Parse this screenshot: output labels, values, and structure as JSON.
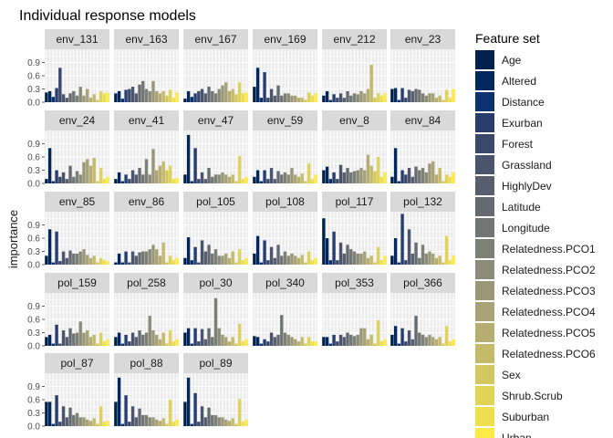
{
  "chart_data": {
    "type": "bar",
    "title": "Individual response models",
    "ylabel": "importance",
    "xlabel": "",
    "ylim": [
      0,
      1.2
    ],
    "y_ticks": [
      0.0,
      0.3,
      0.6,
      0.9
    ],
    "y_tick_labels": [
      "0.0",
      "0.3",
      "0.6",
      "0.9"
    ],
    "grid": true,
    "legend": {
      "title": "Feature set",
      "placement": "right",
      "items": [
        {
          "label": "Age",
          "color": "#00204d"
        },
        {
          "label": "Altered",
          "color": "#00275e"
        },
        {
          "label": "Distance",
          "color": "#0a326f"
        },
        {
          "label": "Exurban",
          "color": "#263d6d"
        },
        {
          "label": "Forest",
          "color": "#3a486b"
        },
        {
          "label": "Grassland",
          "color": "#4a546c"
        },
        {
          "label": "HighlyDev",
          "color": "#575f6e"
        },
        {
          "label": "Latitude",
          "color": "#646a70"
        },
        {
          "label": "Longitude",
          "color": "#717573"
        },
        {
          "label": "Relatedness.PCO1",
          "color": "#7d8075"
        },
        {
          "label": "Relatedness.PCO2",
          "color": "#8a8b78"
        },
        {
          "label": "Relatedness.PCO3",
          "color": "#999778"
        },
        {
          "label": "Relatedness.PCO4",
          "color": "#a8a276"
        },
        {
          "label": "Relatedness.PCO5",
          "color": "#b6ae71"
        },
        {
          "label": "Relatedness.PCO6",
          "color": "#c5ba6a"
        },
        {
          "label": "Sex",
          "color": "#d3c762"
        },
        {
          "label": "Shrub.Scrub",
          "color": "#e1d358"
        },
        {
          "label": "Suburban",
          "color": "#f0df4c"
        },
        {
          "label": "Urban",
          "color": "#fdea45"
        }
      ]
    },
    "panels": [
      {
        "name": "env_131",
        "values": [
          0.22,
          0.25,
          0.12,
          0.32,
          0.78,
          0.18,
          0.1,
          0.2,
          0.25,
          0.15,
          0.35,
          0.15,
          0.3,
          0.1,
          0.18,
          0.05,
          0.25,
          0.2,
          0.22
        ]
      },
      {
        "name": "env_163",
        "values": [
          0.2,
          0.25,
          0.08,
          0.28,
          0.3,
          0.35,
          0.2,
          0.4,
          0.48,
          0.3,
          0.25,
          0.48,
          0.25,
          0.2,
          0.25,
          0.15,
          0.28,
          0.1,
          0.22
        ]
      },
      {
        "name": "env_167",
        "values": [
          0.08,
          0.25,
          0.12,
          0.2,
          0.25,
          0.3,
          0.2,
          0.35,
          0.25,
          0.2,
          0.3,
          0.38,
          0.45,
          0.25,
          0.3,
          0.18,
          0.45,
          0.2,
          0.22
        ]
      },
      {
        "name": "env_169",
        "values": [
          0.35,
          0.78,
          0.1,
          0.68,
          0.1,
          0.3,
          0.15,
          0.38,
          0.15,
          0.2,
          0.2,
          0.15,
          0.15,
          0.1,
          0.1,
          0.05,
          0.22,
          0.15,
          0.2
        ]
      },
      {
        "name": "env_212",
        "values": [
          0.15,
          0.25,
          0.05,
          0.18,
          0.1,
          0.2,
          0.1,
          0.25,
          0.15,
          0.2,
          0.18,
          0.25,
          0.2,
          0.3,
          0.85,
          0.1,
          0.2,
          0.15,
          0.2
        ]
      },
      {
        "name": "env_23",
        "values": [
          0.3,
          0.32,
          0.05,
          0.32,
          0.1,
          0.28,
          0.25,
          0.3,
          0.28,
          0.2,
          0.15,
          0.2,
          0.2,
          0.1,
          0.15,
          0.05,
          0.28,
          0.1,
          0.3
        ]
      },
      {
        "name": "env_24",
        "values": [
          0.1,
          0.8,
          0.05,
          0.3,
          0.15,
          0.25,
          0.1,
          0.4,
          0.15,
          0.28,
          0.2,
          0.48,
          0.55,
          0.4,
          0.58,
          0.05,
          0.35,
          0.1,
          0.15
        ]
      },
      {
        "name": "env_41",
        "values": [
          0.1,
          0.25,
          0.05,
          0.2,
          0.1,
          0.3,
          0.2,
          0.35,
          0.2,
          0.55,
          0.2,
          0.78,
          0.3,
          0.4,
          0.5,
          0.3,
          0.4,
          0.1,
          0.12
        ]
      },
      {
        "name": "env_47",
        "values": [
          0.2,
          1.1,
          0.05,
          0.8,
          0.1,
          0.25,
          0.1,
          0.35,
          0.15,
          0.2,
          0.2,
          0.25,
          0.2,
          0.15,
          0.2,
          0.05,
          0.62,
          0.1,
          0.15
        ]
      },
      {
        "name": "env_59",
        "values": [
          0.15,
          0.3,
          0.05,
          0.3,
          0.1,
          0.35,
          0.1,
          0.28,
          0.2,
          0.25,
          0.2,
          0.35,
          0.2,
          0.15,
          0.22,
          0.05,
          0.45,
          0.1,
          0.2
        ]
      },
      {
        "name": "env_8",
        "values": [
          0.3,
          0.38,
          0.1,
          0.25,
          0.1,
          0.42,
          0.25,
          0.35,
          0.25,
          0.28,
          0.3,
          0.35,
          0.3,
          0.65,
          0.4,
          0.28,
          0.6,
          0.15,
          0.25
        ]
      },
      {
        "name": "env_84",
        "values": [
          0.15,
          0.8,
          0.05,
          0.3,
          0.2,
          0.35,
          0.15,
          0.38,
          0.3,
          0.35,
          0.25,
          0.45,
          0.5,
          0.2,
          0.35,
          0.05,
          0.2,
          0.15,
          0.25
        ]
      },
      {
        "name": "env_85",
        "values": [
          0.2,
          0.8,
          0.05,
          0.75,
          0.08,
          0.3,
          0.15,
          0.32,
          0.25,
          0.25,
          0.3,
          0.35,
          0.22,
          0.15,
          0.2,
          0.05,
          0.15,
          0.1,
          0.08
        ]
      },
      {
        "name": "env_86",
        "values": [
          0.05,
          0.25,
          0.05,
          0.3,
          0.05,
          0.3,
          0.2,
          0.28,
          0.3,
          0.3,
          0.35,
          0.45,
          0.35,
          0.2,
          0.5,
          0.05,
          0.2,
          0.1,
          0.15
        ]
      },
      {
        "name": "pol_105",
        "values": [
          0.15,
          0.62,
          0.1,
          0.4,
          0.05,
          0.55,
          0.3,
          0.45,
          0.25,
          0.35,
          0.2,
          0.2,
          0.25,
          0.15,
          0.3,
          0.05,
          0.35,
          0.1,
          0.15
        ]
      },
      {
        "name": "pol_108",
        "values": [
          0.25,
          0.65,
          0.05,
          0.55,
          0.1,
          0.4,
          0.15,
          0.45,
          0.2,
          0.3,
          0.2,
          0.25,
          0.2,
          0.15,
          0.22,
          0.05,
          0.3,
          0.1,
          0.15
        ]
      },
      {
        "name": "pol_117",
        "values": [
          1.05,
          0.6,
          0.1,
          0.75,
          0.1,
          0.5,
          0.25,
          0.45,
          0.35,
          0.3,
          0.25,
          0.25,
          0.3,
          0.15,
          0.2,
          0.05,
          0.4,
          0.1,
          0.2
        ]
      },
      {
        "name": "pol_132",
        "values": [
          0.2,
          0.6,
          0.05,
          1.15,
          0.1,
          0.8,
          0.25,
          0.5,
          0.15,
          0.45,
          0.25,
          0.3,
          0.25,
          0.15,
          0.2,
          0.05,
          0.65,
          0.1,
          0.2
        ]
      },
      {
        "name": "pol_159",
        "values": [
          0.2,
          0.25,
          0.05,
          0.48,
          0.05,
          0.35,
          0.2,
          0.4,
          0.28,
          0.3,
          0.55,
          0.3,
          0.35,
          0.2,
          0.25,
          0.05,
          0.3,
          0.1,
          0.15
        ]
      },
      {
        "name": "pol_258",
        "values": [
          0.2,
          0.3,
          0.05,
          0.25,
          0.1,
          0.3,
          0.2,
          0.35,
          0.25,
          0.3,
          0.68,
          0.35,
          0.25,
          0.15,
          0.3,
          0.05,
          0.35,
          0.1,
          0.15
        ]
      },
      {
        "name": "pol_30",
        "values": [
          0.3,
          0.4,
          0.05,
          0.4,
          0.1,
          0.38,
          0.15,
          0.4,
          0.2,
          1.08,
          0.4,
          0.25,
          0.2,
          0.1,
          0.2,
          0.05,
          0.5,
          0.1,
          0.15
        ]
      },
      {
        "name": "pol_340",
        "values": [
          0.22,
          0.2,
          0.05,
          0.15,
          0.1,
          0.3,
          0.2,
          0.25,
          0.7,
          0.3,
          0.25,
          0.2,
          0.15,
          0.1,
          0.2,
          0.05,
          0.2,
          0.1,
          0.1
        ]
      },
      {
        "name": "pol_353",
        "values": [
          0.2,
          0.2,
          0.05,
          0.25,
          0.1,
          0.25,
          0.2,
          0.3,
          0.25,
          0.22,
          0.25,
          0.4,
          0.4,
          0.15,
          0.25,
          0.05,
          0.58,
          0.1,
          0.15
        ]
      },
      {
        "name": "pol_366",
        "values": [
          0.25,
          0.45,
          0.05,
          0.4,
          0.1,
          0.35,
          0.15,
          0.68,
          0.3,
          0.25,
          0.2,
          0.25,
          0.2,
          0.15,
          0.2,
          0.05,
          0.45,
          0.1,
          0.15
        ]
      },
      {
        "name": "pol_87",
        "values": [
          0.55,
          0.55,
          0.05,
          0.7,
          0.1,
          0.45,
          0.2,
          0.42,
          0.25,
          0.3,
          0.2,
          0.2,
          0.15,
          0.12,
          0.18,
          0.05,
          0.45,
          0.1,
          0.12
        ]
      },
      {
        "name": "pol_88",
        "values": [
          0.55,
          1.1,
          0.05,
          0.7,
          0.1,
          0.45,
          0.2,
          0.4,
          0.25,
          0.25,
          0.2,
          0.2,
          0.15,
          0.12,
          0.18,
          0.05,
          0.6,
          0.1,
          0.15
        ]
      },
      {
        "name": "pol_89",
        "values": [
          0.55,
          1.1,
          0.05,
          0.75,
          0.1,
          0.45,
          0.2,
          0.42,
          0.25,
          0.25,
          0.2,
          0.2,
          0.15,
          0.12,
          0.18,
          0.05,
          0.62,
          0.1,
          0.15
        ]
      }
    ]
  }
}
